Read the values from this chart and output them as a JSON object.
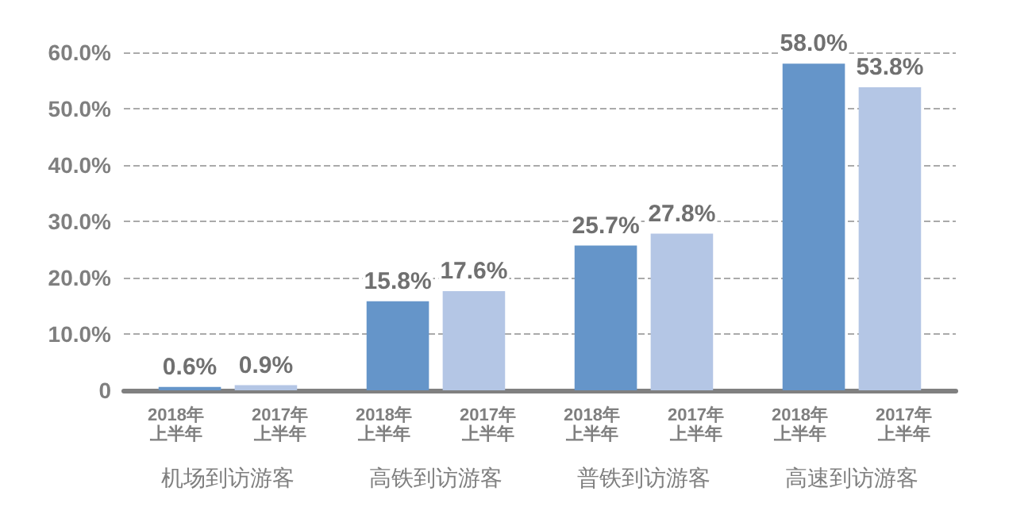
{
  "chart_data": {
    "type": "bar",
    "categories": [
      "机场到访游客",
      "高铁到访游客",
      "普铁到访游客",
      "高速到访游客"
    ],
    "series": [
      {
        "name": "2018年上半年",
        "color": "#6595c9",
        "values": [
          0.6,
          15.8,
          25.7,
          58.0
        ],
        "value_labels": [
          "0.6%",
          "15.8%",
          "25.7%",
          "58.0%"
        ]
      },
      {
        "name": "2017年上半年",
        "color": "#b4c6e5",
        "values": [
          0.9,
          17.6,
          27.8,
          53.8
        ],
        "value_labels": [
          "0.9%",
          "17.6%",
          "27.8%",
          "53.8%"
        ]
      }
    ],
    "ylim": [
      0,
      60
    ],
    "yticks": [
      0,
      {
        "value": 10,
        "label": "10.0%"
      },
      {
        "value": 20,
        "label": "20.0%"
      },
      {
        "value": 30,
        "label": "30.0%"
      },
      {
        "value": 40,
        "label": "40.0%"
      },
      {
        "value": 50,
        "label": "50.0%"
      },
      {
        "value": 60,
        "label": "60.0%"
      }
    ],
    "grid": "y",
    "legend": false
  }
}
